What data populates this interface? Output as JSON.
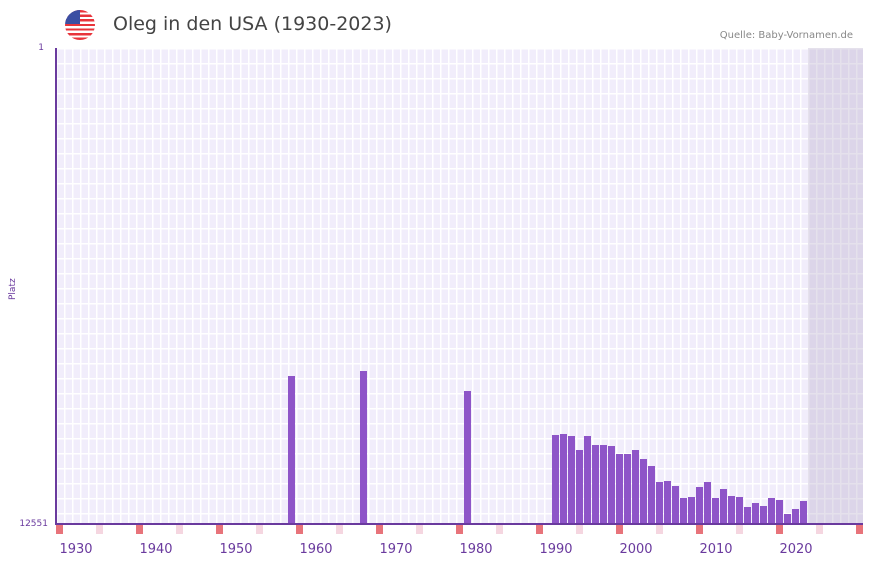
{
  "header": {
    "title": "Oleg in den USA (1930-2023)",
    "source": "Quelle: Baby-Vornamen.de",
    "flag_icon": "us-flag-icon"
  },
  "colors": {
    "bar": "#8e55c8",
    "axis": "#6a3a9e",
    "marker_decade": "#e8737a",
    "marker_half": "#f5d6e0",
    "plot_bg": "#f1edfb"
  },
  "chart_data": {
    "type": "bar",
    "title": "Oleg in den USA (1930-2023)",
    "xlabel": "",
    "ylabel": "Platz",
    "ylim": [
      12551,
      1
    ],
    "y_ticks": [
      "1",
      "12551"
    ],
    "x_ticks": [
      "1930",
      "1940",
      "1950",
      "1960",
      "1970",
      "1980",
      "1990",
      "2000",
      "2010",
      "2020"
    ],
    "x_range": [
      1928,
      2028
    ],
    "categories": [
      1957,
      1966,
      1979,
      1990,
      1991,
      1992,
      1993,
      1994,
      1995,
      1996,
      1997,
      1998,
      1999,
      2000,
      2001,
      2002,
      2003,
      2004,
      2005,
      2006,
      2007,
      2008,
      2009,
      2010,
      2011,
      2012,
      2013,
      2014,
      2015,
      2016,
      2017,
      2018,
      2019,
      2020,
      2021
    ],
    "values": [
      8649,
      8517,
      9044,
      10204,
      10178,
      10231,
      10600,
      10231,
      10468,
      10468,
      10494,
      10705,
      10705,
      10600,
      10837,
      11022,
      11444,
      11417,
      11549,
      11865,
      11839,
      11575,
      11444,
      11865,
      11628,
      11813,
      11839,
      12103,
      11997,
      12076,
      11865,
      11918,
      12287,
      12155,
      11944
    ],
    "grid": true,
    "legend": null
  },
  "axis": {
    "y_top": "1",
    "y_bottom": "12551",
    "y_name": "Platz"
  }
}
